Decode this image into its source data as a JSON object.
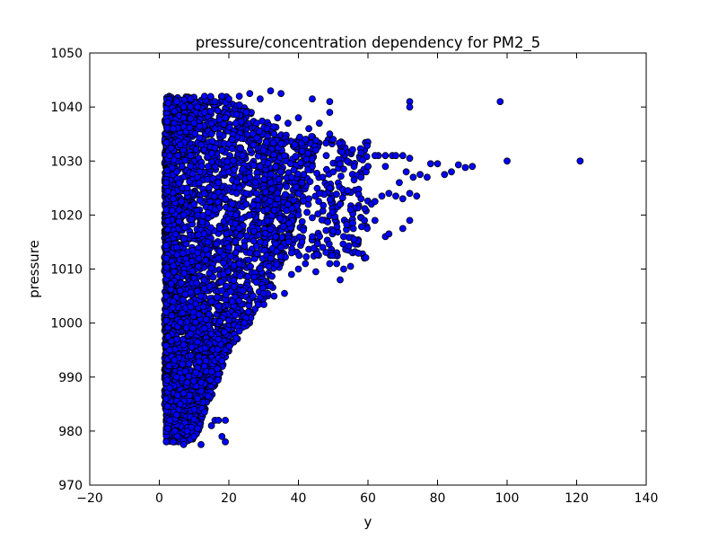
{
  "chart_data": {
    "type": "scatter",
    "title": "pressure/concentration dependency for PM2_5",
    "xlabel": "y",
    "ylabel": "pressure",
    "xlim": [
      -20,
      140
    ],
    "ylim": [
      970,
      1050
    ],
    "xticks": [
      "−20",
      "0",
      "20",
      "40",
      "60",
      "80",
      "100",
      "120",
      "140"
    ],
    "yticks": [
      "970",
      "980",
      "990",
      "1000",
      "1010",
      "1020",
      "1030",
      "1040",
      "1050"
    ],
    "grid": false,
    "legend": "none",
    "marker_color": "#0000ff",
    "marker_edge": "#000000",
    "series": [
      {
        "points": [
          [
            2,
            978
          ],
          [
            3,
            982
          ],
          [
            4,
            978
          ],
          [
            5,
            983
          ],
          [
            7,
            977.5
          ],
          [
            8,
            980
          ],
          [
            9,
            978.5
          ],
          [
            10,
            979
          ],
          [
            11,
            980.5
          ],
          [
            12,
            977.5
          ],
          [
            13,
            983.5
          ],
          [
            15,
            981
          ],
          [
            16,
            982
          ],
          [
            17,
            982
          ],
          [
            18,
            979
          ],
          [
            19,
            982
          ],
          [
            19,
            978
          ],
          [
            2,
            986
          ],
          [
            3,
            988
          ],
          [
            5,
            990
          ],
          [
            6,
            985
          ],
          [
            7,
            987
          ],
          [
            8,
            989
          ],
          [
            10,
            984
          ],
          [
            11,
            986
          ],
          [
            12,
            989
          ],
          [
            14,
            986.5
          ],
          [
            13,
            992
          ],
          [
            15,
            991
          ],
          [
            16,
            993
          ],
          [
            17,
            993.5
          ],
          [
            18,
            993
          ],
          [
            3,
            995
          ],
          [
            5,
            997
          ],
          [
            7,
            996
          ],
          [
            9,
            998
          ],
          [
            11,
            996.5
          ],
          [
            13,
            999
          ],
          [
            15,
            998
          ],
          [
            17,
            997
          ],
          [
            20,
            1000.5
          ],
          [
            23,
            998.5
          ],
          [
            2,
            1002
          ],
          [
            4,
            1004
          ],
          [
            6,
            1006
          ],
          [
            9,
            1003
          ],
          [
            12,
            1005
          ],
          [
            15,
            1004
          ],
          [
            18,
            1006
          ],
          [
            21,
            1004
          ],
          [
            24,
            1006
          ],
          [
            27,
            1005
          ],
          [
            30,
            1005.5
          ],
          [
            33,
            1005
          ],
          [
            36,
            1005.5
          ],
          [
            38,
            1009
          ],
          [
            40,
            1010
          ],
          [
            42,
            1011
          ],
          [
            45,
            1009.5
          ],
          [
            49,
            1011
          ],
          [
            51,
            1011
          ],
          [
            52,
            1008
          ],
          [
            53,
            1010
          ],
          [
            55,
            1010.5
          ],
          [
            2,
            1012
          ],
          [
            5,
            1014
          ],
          [
            8,
            1011
          ],
          [
            11,
            1013
          ],
          [
            14,
            1015
          ],
          [
            17,
            1012
          ],
          [
            20,
            1014
          ],
          [
            23,
            1011
          ],
          [
            26,
            1013
          ],
          [
            29,
            1015
          ],
          [
            32,
            1012
          ],
          [
            35,
            1014
          ],
          [
            38,
            1013
          ],
          [
            41,
            1015
          ],
          [
            44,
            1016
          ],
          [
            47,
            1014
          ],
          [
            50,
            1017
          ],
          [
            53,
            1016
          ],
          [
            56,
            1015.5
          ],
          [
            59,
            1019
          ],
          [
            62,
            1019
          ],
          [
            65,
            1016
          ],
          [
            66,
            1016.5
          ],
          [
            70,
            1017.5
          ],
          [
            2,
            1021
          ],
          [
            4,
            1023
          ],
          [
            7,
            1020
          ],
          [
            10,
            1022
          ],
          [
            13,
            1024
          ],
          [
            16,
            1021
          ],
          [
            19,
            1023
          ],
          [
            22,
            1020
          ],
          [
            25,
            1022
          ],
          [
            28,
            1024
          ],
          [
            31,
            1021
          ],
          [
            34,
            1023
          ],
          [
            37,
            1022
          ],
          [
            40,
            1020
          ],
          [
            43,
            1023
          ],
          [
            46,
            1024
          ],
          [
            49,
            1025
          ],
          [
            52,
            1022
          ],
          [
            55,
            1021
          ],
          [
            58,
            1023
          ],
          [
            61,
            1022
          ],
          [
            62,
            1022.5
          ],
          [
            64,
            1023.5
          ],
          [
            66,
            1024
          ],
          [
            68,
            1023.5
          ],
          [
            70,
            1023
          ],
          [
            72,
            1024
          ],
          [
            72,
            1019
          ],
          [
            74,
            1023.5
          ],
          [
            2,
            1026
          ],
          [
            5,
            1028
          ],
          [
            8,
            1025
          ],
          [
            11,
            1027
          ],
          [
            14,
            1029
          ],
          [
            17,
            1026
          ],
          [
            20,
            1028
          ],
          [
            23,
            1025
          ],
          [
            26,
            1027
          ],
          [
            29,
            1029
          ],
          [
            32,
            1026
          ],
          [
            35,
            1028
          ],
          [
            38,
            1027
          ],
          [
            41,
            1026
          ],
          [
            44,
            1029
          ],
          [
            47,
            1027
          ],
          [
            50,
            1028
          ],
          [
            53,
            1028.5
          ],
          [
            56,
            1026.5
          ],
          [
            58,
            1027
          ],
          [
            60,
            1029
          ],
          [
            63,
            1031
          ],
          [
            65,
            1029
          ],
          [
            67,
            1031
          ],
          [
            69,
            1026
          ],
          [
            71,
            1028
          ],
          [
            73,
            1027
          ],
          [
            75,
            1027.5
          ],
          [
            77,
            1027
          ],
          [
            78,
            1029.5
          ],
          [
            80,
            1029.5
          ],
          [
            82,
            1027.5
          ],
          [
            84,
            1028
          ],
          [
            86,
            1029.3
          ],
          [
            88,
            1028.8
          ],
          [
            90,
            1029
          ],
          [
            100,
            1030
          ],
          [
            121,
            1030
          ],
          [
            3,
            1031
          ],
          [
            6,
            1033
          ],
          [
            9,
            1031
          ],
          [
            12,
            1033
          ],
          [
            15,
            1035
          ],
          [
            18,
            1032
          ],
          [
            21,
            1034
          ],
          [
            24,
            1031
          ],
          [
            27,
            1033
          ],
          [
            30,
            1032
          ],
          [
            33,
            1035
          ],
          [
            36,
            1031
          ],
          [
            39,
            1033
          ],
          [
            42,
            1034
          ],
          [
            45,
            1032
          ],
          [
            48,
            1031
          ],
          [
            50,
            1034
          ],
          [
            52,
            1029.5
          ],
          [
            54,
            1030
          ],
          [
            56,
            1029
          ],
          [
            58,
            1031.5
          ],
          [
            60,
            1029
          ],
          [
            62,
            1031
          ],
          [
            65,
            1031
          ],
          [
            68,
            1031
          ],
          [
            70,
            1031
          ],
          [
            72,
            1030.5
          ],
          [
            4,
            1036
          ],
          [
            7,
            1038
          ],
          [
            10,
            1037
          ],
          [
            13,
            1039
          ],
          [
            16,
            1036
          ],
          [
            19,
            1038
          ],
          [
            22,
            1037
          ],
          [
            25,
            1039
          ],
          [
            28,
            1037
          ],
          [
            31,
            1036
          ],
          [
            34,
            1038
          ],
          [
            37,
            1037
          ],
          [
            40,
            1038
          ],
          [
            43,
            1036
          ],
          [
            46,
            1037
          ],
          [
            49,
            1039
          ],
          [
            49,
            1035
          ],
          [
            5,
            1041
          ],
          [
            7,
            1040
          ],
          [
            9,
            1041.5
          ],
          [
            11,
            1040
          ],
          [
            13,
            1042
          ],
          [
            16,
            1041
          ],
          [
            18,
            1042
          ],
          [
            20,
            1041.5
          ],
          [
            23,
            1042
          ],
          [
            26,
            1042.5
          ],
          [
            29,
            1041.5
          ],
          [
            32,
            1043
          ],
          [
            35,
            1042.5
          ],
          [
            44,
            1041.5
          ],
          [
            49,
            1041
          ],
          [
            72,
            1041
          ],
          [
            72,
            1040
          ],
          [
            98,
            1041
          ]
        ]
      }
    ],
    "dense_region": {
      "x_range": [
        1.5,
        45
      ],
      "pressure_core": [
        1002,
        1038
      ],
      "pressure_narrow_low": [
        978,
        1002
      ],
      "note_points_generated_in_script": true
    }
  }
}
